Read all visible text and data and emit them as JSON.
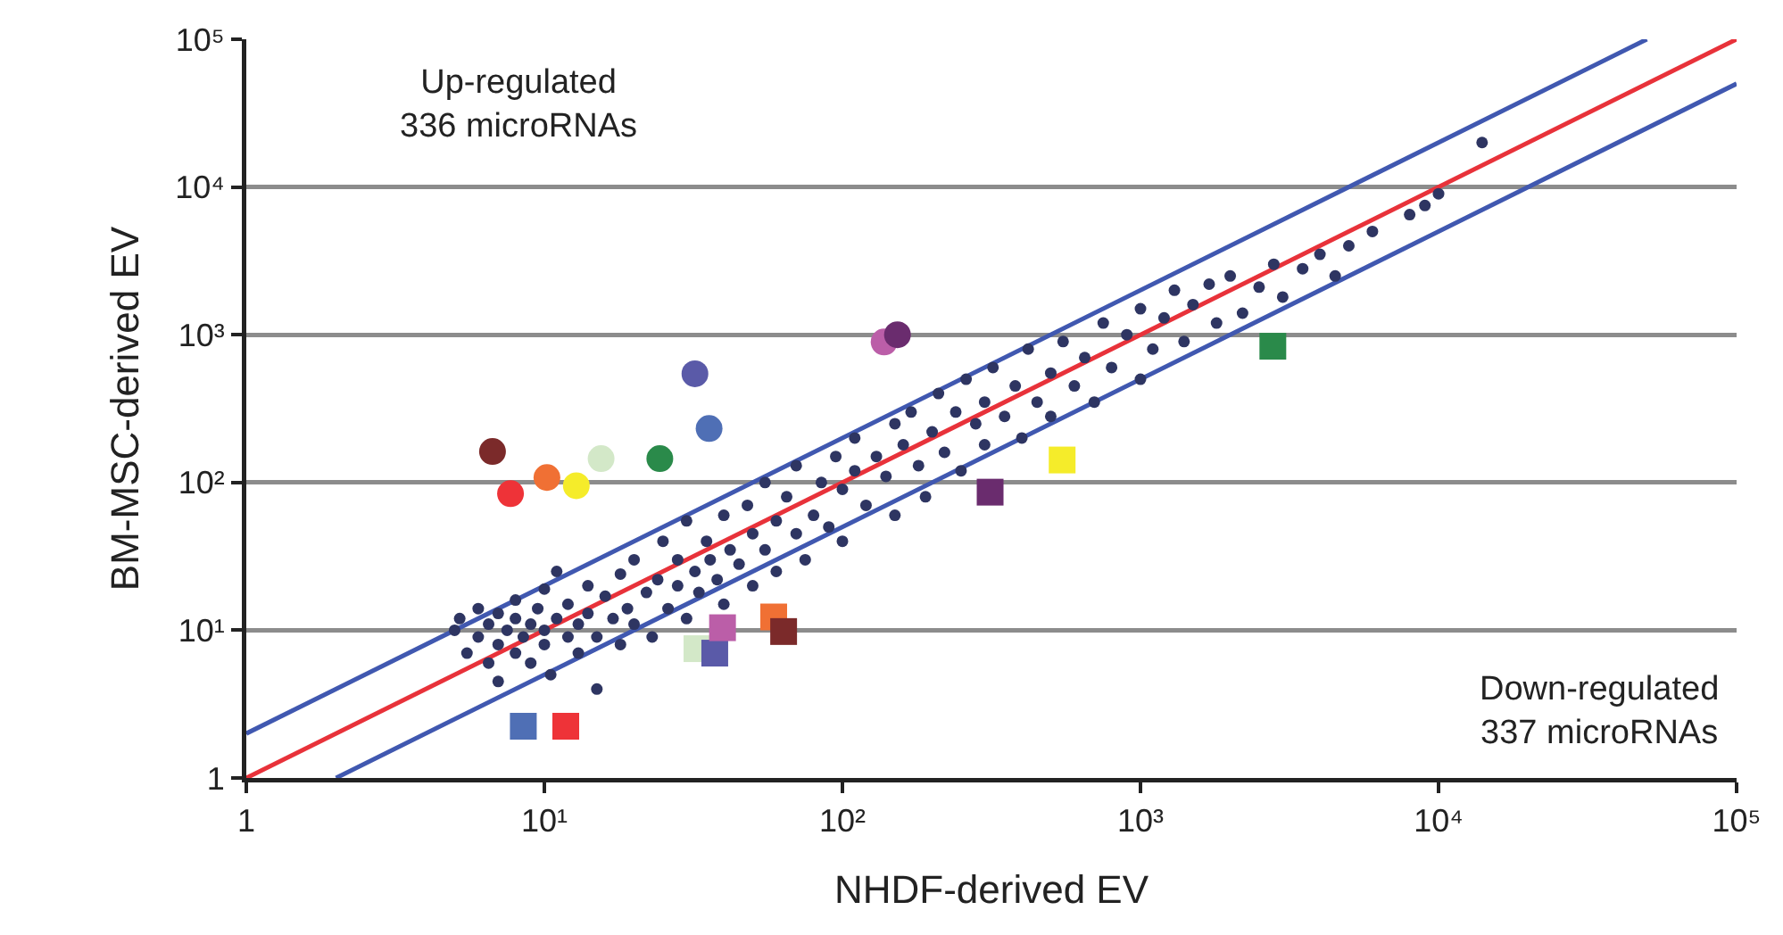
{
  "chart_data": {
    "type": "scatter",
    "xlabel": "NHDF-derived EV",
    "ylabel": "BM-MSC-derived EV",
    "log": "xy",
    "grid": "y",
    "xlim": [
      1,
      100000
    ],
    "ylim": [
      1,
      100000
    ],
    "xticks": [
      1,
      {
        "value": 10,
        "label": "10¹"
      },
      {
        "value": 100,
        "label": "10²"
      },
      {
        "value": 1000,
        "label": "10³"
      },
      {
        "value": 10000,
        "label": "10⁴"
      },
      {
        "value": 100000,
        "label": "10⁵"
      }
    ],
    "yticks": [
      1,
      {
        "value": 10,
        "label": "10¹"
      },
      {
        "value": 100,
        "label": "10²"
      },
      {
        "value": 1000,
        "label": "10³"
      },
      {
        "value": 10000,
        "label": "10⁴"
      },
      {
        "value": 100000,
        "label": "10⁵"
      }
    ],
    "annotations": [
      "Up-regulated\n336 microRNAs",
      "Down-regulated\n337 microRNAs"
    ],
    "series": [
      {
        "type": "line",
        "color": "#e8323a",
        "x": [
          1,
          100000
        ],
        "values": [
          1,
          100000
        ]
      },
      {
        "type": "line",
        "color": "#4058b0",
        "x": [
          1,
          50000
        ],
        "values": [
          2,
          100000
        ]
      },
      {
        "type": "line",
        "color": "#4058b0",
        "x": [
          2,
          100000
        ],
        "values": [
          1,
          50000
        ]
      },
      {
        "marker": "circle",
        "color": "#2e3562",
        "x": [
          5,
          5.5,
          5.2,
          6,
          6,
          6.5,
          6.5,
          7,
          7,
          7,
          7.5,
          8,
          8,
          8,
          8.5,
          9,
          9,
          9.5,
          10,
          10,
          10,
          10.5,
          11,
          11,
          12,
          12,
          13,
          13,
          14,
          14,
          15,
          15,
          16,
          17,
          18,
          18,
          19,
          20,
          20,
          22,
          23,
          24,
          25,
          26,
          28,
          28,
          30,
          30,
          32,
          33,
          35,
          36,
          38,
          40,
          40,
          42,
          45,
          48,
          50,
          50,
          55,
          55,
          60,
          60,
          65,
          70,
          70,
          75,
          80,
          85,
          90,
          95,
          100,
          100,
          110,
          110,
          120,
          130,
          140,
          150,
          150,
          160,
          170,
          180,
          190,
          200,
          210,
          220,
          240,
          250,
          260,
          280,
          300,
          300,
          320,
          350,
          380,
          400,
          420,
          450,
          500,
          500,
          550,
          600,
          650,
          700,
          750,
          800,
          900,
          1000,
          1000,
          1100,
          1200,
          1300,
          1400,
          1500,
          1700,
          1800,
          2000,
          2200,
          2500,
          2800,
          3000,
          3500,
          4000,
          4500,
          5000,
          6000,
          8000,
          9000,
          10000,
          14000
        ],
        "values": [
          10,
          7,
          12,
          9,
          14,
          6,
          11,
          8,
          13,
          4.5,
          10,
          7,
          12,
          16,
          9,
          11,
          6,
          14,
          8,
          10,
          19,
          5,
          12,
          25,
          9,
          15,
          7,
          11,
          20,
          13,
          9,
          4,
          17,
          12,
          24,
          8,
          14,
          30,
          11,
          18,
          9,
          22,
          40,
          14,
          30,
          20,
          12,
          55,
          25,
          18,
          40,
          30,
          22,
          60,
          15,
          35,
          28,
          70,
          45,
          20,
          35,
          100,
          55,
          25,
          80,
          45,
          130,
          30,
          60,
          100,
          50,
          150,
          90,
          40,
          200,
          120,
          70,
          150,
          110,
          60,
          250,
          180,
          300,
          130,
          80,
          220,
          400,
          160,
          300,
          120,
          500,
          250,
          350,
          180,
          600,
          280,
          450,
          200,
          800,
          350,
          550,
          280,
          900,
          450,
          700,
          350,
          1200,
          600,
          1000,
          500,
          1500,
          800,
          1300,
          2000,
          900,
          1600,
          2200,
          1200,
          2500,
          1400,
          2100,
          3000,
          1800,
          2800,
          3500,
          2500,
          4000,
          5000,
          6500,
          7500,
          9000,
          20000
        ]
      },
      {
        "type": "scatter",
        "marker": "circle",
        "x": [
          6.7,
          7.7,
          10.2,
          12.8,
          15.5,
          24.4,
          32,
          35.7,
          138,
          153
        ],
        "values": [
          162,
          84,
          108,
          95,
          145,
          145,
          544,
          232,
          893,
          1000
        ],
        "colors": [
          "#7b2a2a",
          "#ee3338",
          "#f07034",
          "#f5ec2a",
          "#d3e8c8",
          "#2a8a4a",
          "#5a5aa8",
          "#4f6fb5",
          "#bb5ea8",
          "#6a2c6e"
        ]
      },
      {
        "type": "scatter",
        "marker": "square",
        "x": [
          8.5,
          11.8,
          32.5,
          37.3,
          39.6,
          58.8,
          63.5,
          313,
          546,
          2780
        ],
        "values": [
          2.24,
          2.24,
          7.5,
          7,
          10.4,
          12.3,
          9.8,
          86,
          142,
          836
        ],
        "colors": [
          "#4f6fb5",
          "#ee3338",
          "#d3e8c8",
          "#5a5aa8",
          "#bb5ea8",
          "#f07034",
          "#7b2a2a",
          "#6a2c6e",
          "#f5ec2a",
          "#2a8a4a"
        ]
      }
    ]
  }
}
